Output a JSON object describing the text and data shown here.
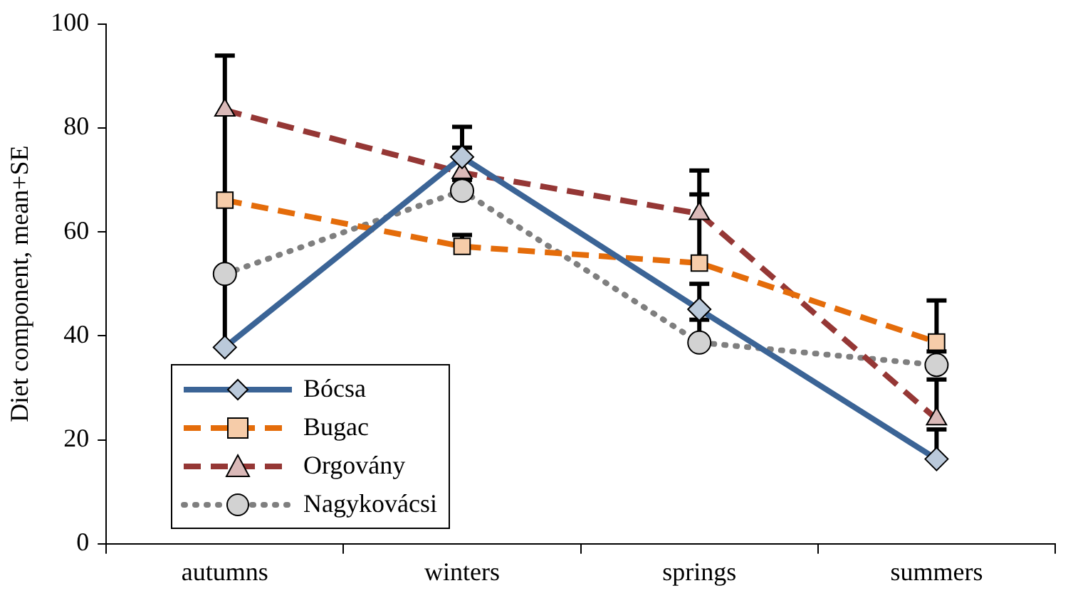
{
  "chart_data": {
    "type": "line",
    "ylabel": "Diet component, mean+SE",
    "categories": [
      "autumns",
      "winters",
      "springs",
      "summers"
    ],
    "ylim": [
      0,
      100
    ],
    "yticks": [
      0,
      20,
      40,
      60,
      80,
      100
    ],
    "grid": false,
    "legend": "bottom left",
    "series": [
      {
        "name": "Bócsa",
        "color": "#3b6496",
        "marker": "diamond",
        "line_style": "solid",
        "values": [
          37.8,
          74.4,
          45.1,
          16.3
        ],
        "errors": [
          [
            37.8,
            93.9
          ],
          [
            74.4,
            80.2
          ],
          [
            45.1,
            50
          ],
          [
            16.3,
            22
          ]
        ]
      },
      {
        "name": "Bugac",
        "color": "#e46c0a",
        "marker": "square",
        "line_style": "dashed",
        "values": [
          66.1,
          57.2,
          54,
          38.8
        ],
        "errors": [
          null,
          [
            57.2,
            59.4
          ],
          [
            54,
            67.2
          ],
          [
            38.8,
            46.8
          ]
        ]
      },
      {
        "name": "Orgovány",
        "color": "#953735",
        "marker": "triangle",
        "line_style": "dashed",
        "values": [
          83.4,
          71.4,
          63.5,
          24
        ],
        "errors": [
          null,
          [
            71.4,
            76.2
          ],
          [
            63.5,
            71.8
          ],
          [
            24,
            31.6
          ]
        ]
      },
      {
        "name": "Nagykovácsi",
        "color": "#7f7f7f",
        "marker": "circle",
        "line_style": "dotted",
        "values": [
          51.9,
          67.9,
          38.7,
          34.4
        ],
        "errors": [
          null,
          [
            67.9,
            70
          ],
          [
            38.7,
            43.1
          ],
          [
            34.4,
            37
          ]
        ]
      }
    ]
  }
}
